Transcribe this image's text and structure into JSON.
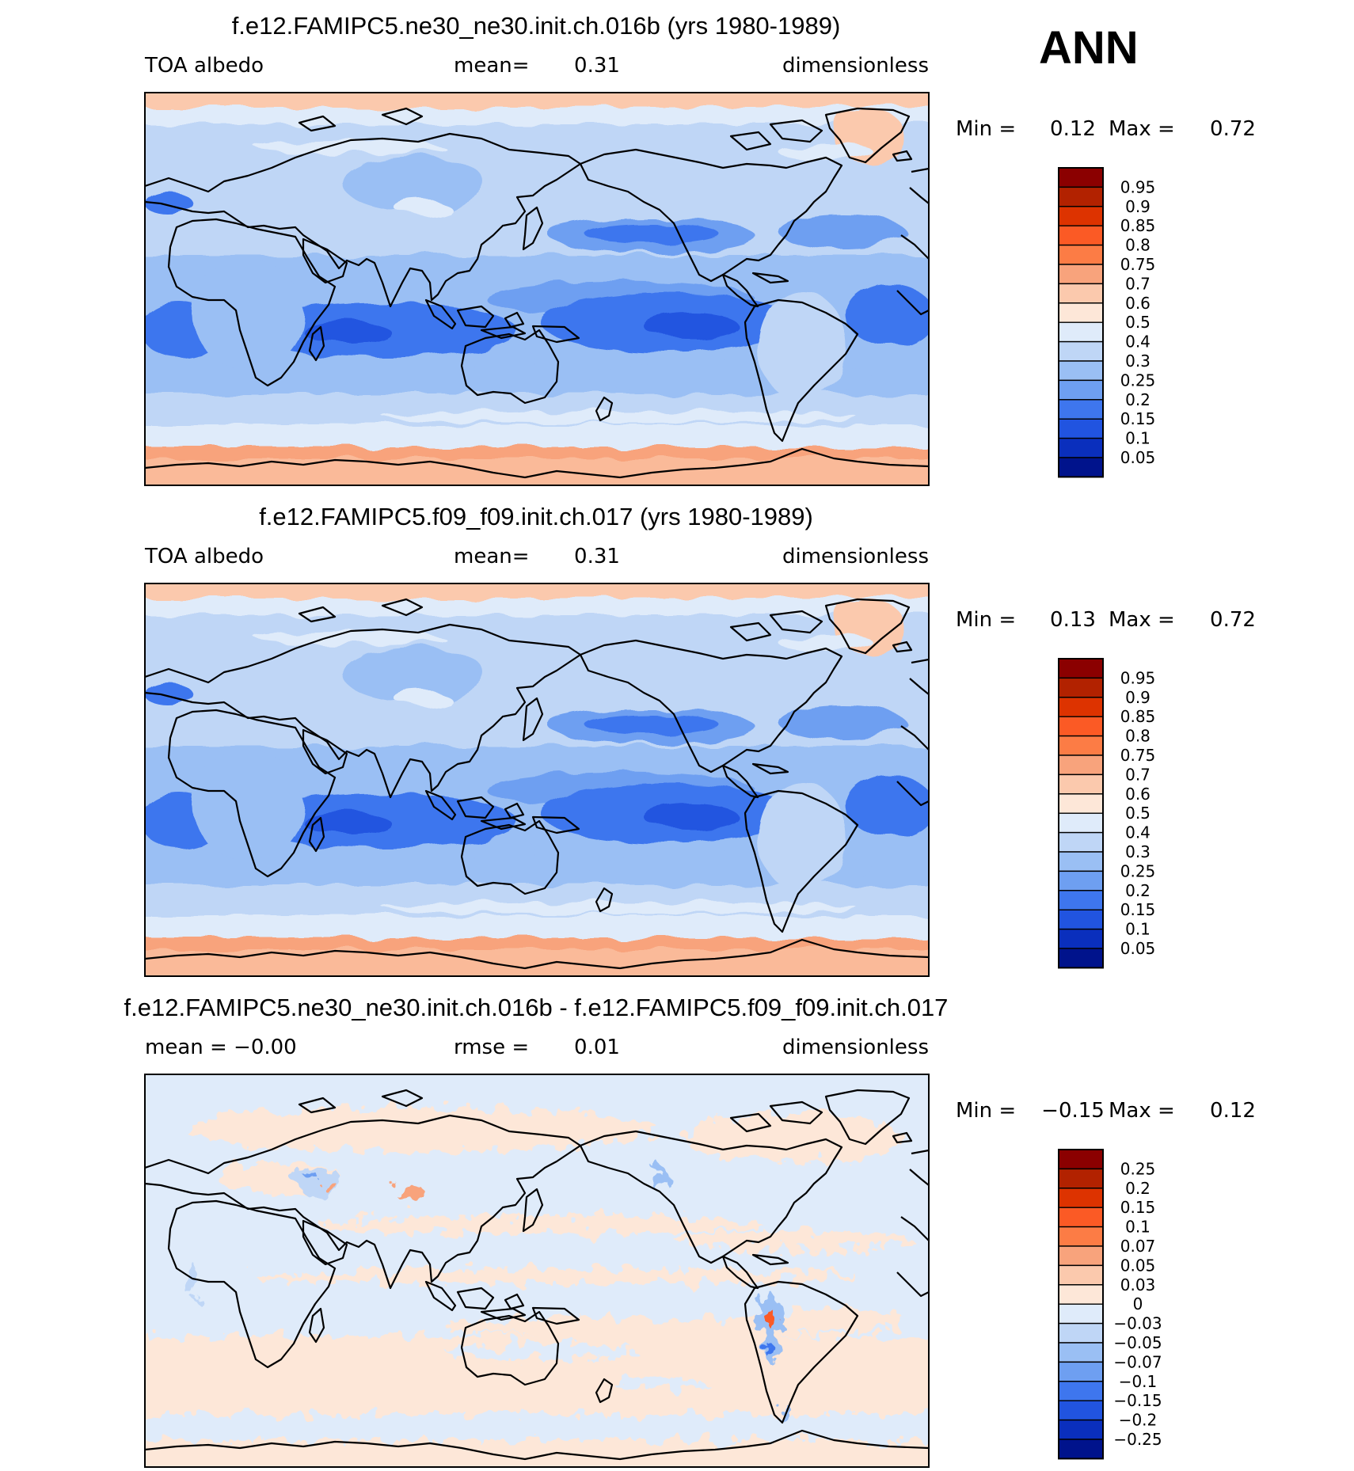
{
  "season": "ANN",
  "panels": [
    {
      "title": "f.e12.FAMIPC5.ne30_ne30.init.ch.016b (yrs 1980-1989)",
      "left_label": "TOA albedo",
      "center_label": "mean=",
      "center_value": "0.31",
      "right_label": "dimensionless",
      "min_label": "Min =",
      "min_value": "0.12",
      "max_label": "Max =",
      "max_value": "0.72",
      "field": "model",
      "colorbar": [
        "0.95",
        "0.9",
        "0.85",
        "0.8",
        "0.75",
        "0.7",
        "0.6",
        "0.5",
        "0.4",
        "0.3",
        "0.25",
        "0.2",
        "0.15",
        "0.1",
        "0.05"
      ]
    },
    {
      "title": "f.e12.FAMIPC5.f09_f09.init.ch.017 (yrs 1980-1989)",
      "left_label": "TOA albedo",
      "center_label": "mean=",
      "center_value": "0.31",
      "right_label": "dimensionless",
      "min_label": "Min =",
      "min_value": "0.13",
      "max_label": "Max =",
      "max_value": "0.72",
      "field": "model",
      "colorbar": [
        "0.95",
        "0.9",
        "0.85",
        "0.8",
        "0.75",
        "0.7",
        "0.6",
        "0.5",
        "0.4",
        "0.3",
        "0.25",
        "0.2",
        "0.15",
        "0.1",
        "0.05"
      ]
    },
    {
      "title": "f.e12.FAMIPC5.ne30_ne30.init.ch.016b - f.e12.FAMIPC5.f09_f09.init.ch.017",
      "left_label": "mean =  −0.00",
      "center_label": "rmse =",
      "center_value": "0.01",
      "right_label": "dimensionless",
      "min_label": "Min =",
      "min_value": "−0.15",
      "max_label": "Max =",
      "max_value": "0.12",
      "field": "diff",
      "colorbar": [
        "0.25",
        "0.2",
        "0.15",
        "0.1",
        "0.07",
        "0.05",
        "0.03",
        "0",
        "−0.03",
        "−0.05",
        "−0.07",
        "−0.1",
        "−0.15",
        "−0.2",
        "−0.25"
      ]
    }
  ],
  "colors": {
    "colorbar_16": [
      "#8b0000",
      "#b22200",
      "#dd3300",
      "#fb5a25",
      "#fc7c45",
      "#f8a37c",
      "#fbc9ad",
      "#fde7d8",
      "#dfebfa",
      "#bfd6f6",
      "#9abff4",
      "#6e9ff1",
      "#3e76ee",
      "#2154e0",
      "#0a2fbd",
      "#00138c"
    ],
    "land_outline": "#000000"
  }
}
